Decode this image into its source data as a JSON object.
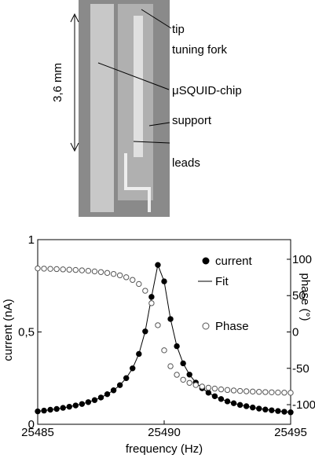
{
  "photo": {
    "scale_label": "3,6 mm",
    "labels": [
      "tip",
      "tuning fork",
      "μSQUID-chip",
      "support",
      "leads"
    ]
  },
  "chart_data": {
    "type": "scatter",
    "xlabel": "frequency (Hz)",
    "ylabel": "current (nA)",
    "y2label": "phase (°)",
    "x": [
      25485,
      25485.25,
      25485.5,
      25485.75,
      25486,
      25486.25,
      25486.5,
      25486.75,
      25487,
      25487.25,
      25487.5,
      25487.75,
      25488,
      25488.25,
      25488.5,
      25488.75,
      25489,
      25489.25,
      25489.5,
      25489.75,
      25490,
      25490.25,
      25490.5,
      25490.75,
      25491,
      25491.25,
      25491.5,
      25491.75,
      25492,
      25492.25,
      25492.5,
      25492.75,
      25493,
      25493.25,
      25493.5,
      25493.75,
      25494,
      25494.25,
      25494.5,
      25494.75,
      25495
    ],
    "series": [
      {
        "name": "current",
        "color": "#000000",
        "marker": "filled",
        "values": [
          0.07,
          0.074,
          0.079,
          0.083,
          0.089,
          0.095,
          0.102,
          0.11,
          0.12,
          0.131,
          0.145,
          0.163,
          0.184,
          0.212,
          0.25,
          0.303,
          0.381,
          0.503,
          0.69,
          0.863,
          0.774,
          0.57,
          0.423,
          0.33,
          0.269,
          0.226,
          0.195,
          0.171,
          0.152,
          0.137,
          0.124,
          0.114,
          0.105,
          0.098,
          0.091,
          0.085,
          0.08,
          0.076,
          0.072,
          0.068,
          0.065
        ]
      },
      {
        "name": "Fit",
        "color": "#000000",
        "marker": "line",
        "values": [
          0.07,
          0.074,
          0.079,
          0.083,
          0.089,
          0.095,
          0.102,
          0.11,
          0.12,
          0.131,
          0.145,
          0.163,
          0.184,
          0.212,
          0.25,
          0.303,
          0.381,
          0.503,
          0.69,
          0.863,
          0.774,
          0.57,
          0.423,
          0.33,
          0.269,
          0.226,
          0.195,
          0.171,
          0.152,
          0.137,
          0.124,
          0.114,
          0.105,
          0.098,
          0.091,
          0.085,
          0.08,
          0.076,
          0.072,
          0.068,
          0.065
        ]
      },
      {
        "name": "Phase",
        "color": "#555555",
        "marker": "open",
        "axis": "y2",
        "values": [
          87.4,
          87.1,
          86.8,
          86.5,
          86.1,
          85.7,
          85.3,
          84.7,
          84.1,
          83.3,
          82.4,
          81.2,
          79.8,
          77.9,
          75.3,
          71.6,
          66.0,
          56.7,
          39.6,
          9.3,
          -25.2,
          -47.1,
          -58.9,
          -65.7,
          -70.0,
          -73.0,
          -75.1,
          -76.7,
          -77.9,
          -79.0,
          -79.8,
          -80.5,
          -81.1,
          -81.6,
          -82.0,
          -82.4,
          -82.7,
          -83.0,
          -83.3,
          -83.5,
          -83.7
        ]
      }
    ],
    "xlim": [
      25485,
      25495
    ],
    "xticks": [
      25485,
      25490,
      25495
    ],
    "ylim": [
      0,
      1
    ],
    "yticks": [
      0,
      {
        "value": 0.5,
        "label": "0,5"
      },
      1
    ],
    "y2lim": [
      -127,
      127
    ],
    "y2ticks": [
      -100,
      -50,
      0,
      50,
      100
    ]
  }
}
